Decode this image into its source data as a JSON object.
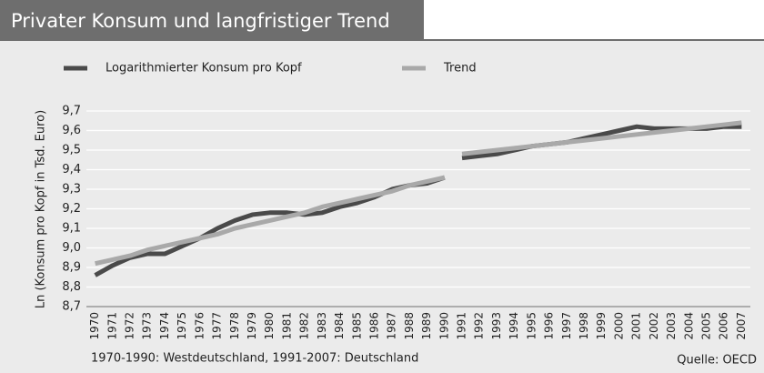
{
  "chart_data": {
    "type": "line",
    "title": "Privater Konsum und langfristiger Trend",
    "y_label": "Ln (Konsum pro Kopf in Tsd. Euro)",
    "note": "1970-1990: Westdeutschland, 1991-2007: Deutschland",
    "source": "Quelle: OECD",
    "x": [
      1970,
      1971,
      1972,
      1973,
      1974,
      1975,
      1976,
      1977,
      1978,
      1979,
      1980,
      1981,
      1982,
      1983,
      1984,
      1985,
      1986,
      1987,
      1988,
      1989,
      1990,
      1991,
      1992,
      1993,
      1994,
      1995,
      1996,
      1997,
      1998,
      1999,
      2000,
      2001,
      2002,
      2003,
      2004,
      2005,
      2006,
      2007
    ],
    "xlim": [
      1969.5,
      2007.5
    ],
    "line_breaks_after": [
      1990
    ],
    "series": [
      {
        "name": "Logarithmierter Konsum pro Kopf",
        "color": "#4a4a4a",
        "values": [
          8.86,
          8.91,
          8.95,
          8.97,
          8.97,
          9.01,
          9.05,
          9.1,
          9.14,
          9.17,
          9.18,
          9.18,
          9.17,
          9.18,
          9.21,
          9.23,
          9.26,
          9.3,
          9.32,
          9.33,
          9.36,
          9.46,
          9.47,
          9.48,
          9.5,
          9.52,
          9.53,
          9.54,
          9.56,
          9.58,
          9.6,
          9.62,
          9.61,
          9.61,
          9.61,
          9.61,
          9.62,
          9.62
        ]
      },
      {
        "name": "Trend",
        "color": "#a9a9a9",
        "values": [
          8.92,
          8.94,
          8.96,
          8.99,
          9.01,
          9.03,
          9.05,
          9.07,
          9.1,
          9.12,
          9.14,
          9.16,
          9.18,
          9.21,
          9.23,
          9.25,
          9.27,
          9.29,
          9.32,
          9.34,
          9.36,
          9.48,
          9.49,
          9.5,
          9.51,
          9.52,
          9.53,
          9.54,
          9.55,
          9.56,
          9.57,
          9.58,
          9.59,
          9.6,
          9.61,
          9.62,
          9.63,
          9.64
        ]
      }
    ],
    "ylim": [
      8.7,
      9.7
    ],
    "yticks": [
      {
        "value": 8.7,
        "label": "8,7"
      },
      {
        "value": 8.8,
        "label": "8,8"
      },
      {
        "value": 8.9,
        "label": "8,9"
      },
      {
        "value": 9.0,
        "label": "9,0"
      },
      {
        "value": 9.1,
        "label": "9,1"
      },
      {
        "value": 9.2,
        "label": "9,2"
      },
      {
        "value": 9.3,
        "label": "9,3"
      },
      {
        "value": 9.4,
        "label": "9,4"
      },
      {
        "value": 9.5,
        "label": "9,5"
      },
      {
        "value": 9.6,
        "label": "9,6"
      },
      {
        "value": 9.7,
        "label": "9,7"
      }
    ],
    "grid": true
  }
}
